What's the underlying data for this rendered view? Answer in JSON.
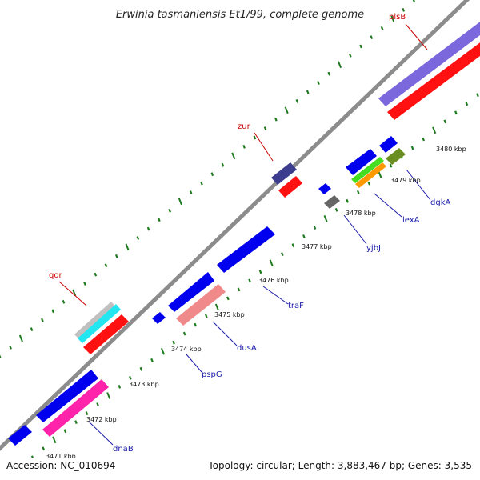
{
  "title": "Erwinia tasmaniensis Et1/99, complete genome",
  "footer": {
    "accession": "Accession: NC_010694",
    "summary": "Topology: circular; Length: 3,883,467 bp; Genes: 3,535"
  },
  "colors": {
    "backbone": "#8c8c8c",
    "tick": "#1f7a1f",
    "forward_label": "#cc0000",
    "reverse_label": "#1a1aaa",
    "leader": "#1a1aaa",
    "leader_forward": "#cc0000"
  },
  "kbp_labels": [
    "3471 kbp",
    "3472 kbp",
    "3473 kbp",
    "3474 kbp",
    "3475 kbp",
    "3476 kbp",
    "3477 kbp",
    "3478 kbp",
    "3479 kbp",
    "3480 kbp"
  ],
  "gene_labels": {
    "plsB": "plsB",
    "zur": "zur",
    "qor": "qor",
    "dgkA": "dgkA",
    "lexA": "lexA",
    "yjbJ": "yjbJ",
    "traF": "traF",
    "dusA": "dusA",
    "pspG": "pspG",
    "dnaB": "dnaB"
  }
}
